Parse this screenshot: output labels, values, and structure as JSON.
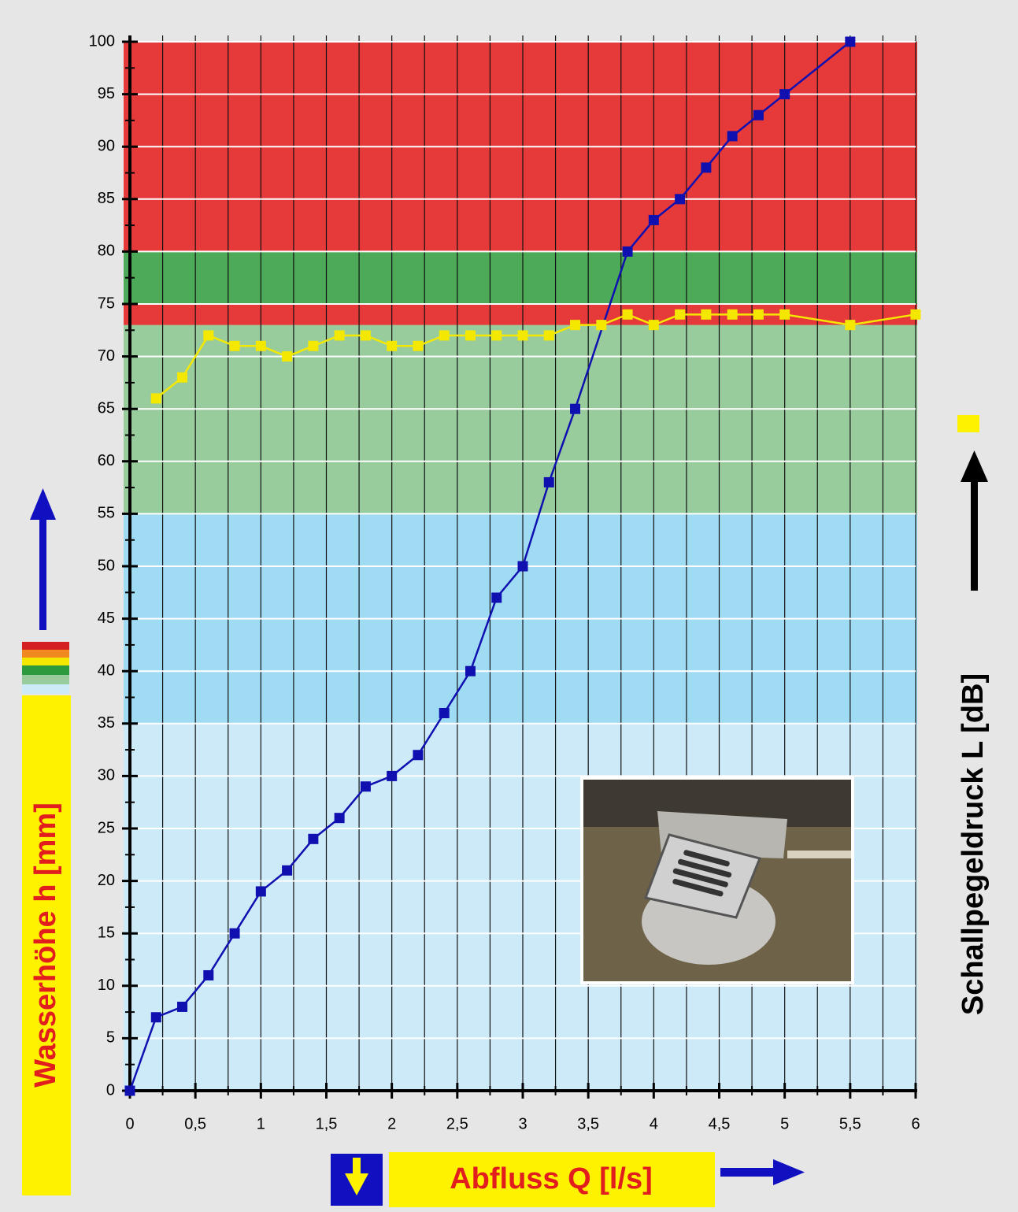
{
  "chart_data": {
    "type": "line",
    "ylabel": "Wasserhöhe h [mm]",
    "xlabel": "Abfluss Q [l/s]",
    "y2label": "Schallpegeldruck L [dB]",
    "xlim": [
      0,
      6
    ],
    "ylim": [
      0,
      100
    ],
    "xticks": [
      0,
      {
        "value": 0.5,
        "label": "0,5"
      },
      1,
      {
        "value": 1.5,
        "label": "1,5"
      },
      2,
      {
        "value": 2.5,
        "label": "2,5"
      },
      3,
      {
        "value": 3.5,
        "label": "3,5"
      },
      4,
      {
        "value": 4.5,
        "label": "4,5"
      },
      5,
      {
        "value": 5.5,
        "label": "5,5"
      },
      6
    ],
    "yticks": [
      0,
      5,
      10,
      15,
      20,
      25,
      30,
      35,
      40,
      45,
      50,
      55,
      60,
      65,
      70,
      75,
      80,
      85,
      90,
      95,
      100
    ],
    "grid": true,
    "xgrid_step": 0.25,
    "yminor_step": 2.5,
    "bands": [
      {
        "range": [
          0,
          35
        ],
        "color": "#cdeaf8"
      },
      {
        "range": [
          35,
          55
        ],
        "color": "#9fdcf4"
      },
      {
        "range": [
          55,
          75
        ],
        "color": "#98cc9c"
      },
      {
        "range": [
          73,
          100
        ],
        "color": "#e63a3a"
      },
      {
        "range": [
          75,
          80
        ],
        "color": "#4caa58"
      }
    ],
    "series": [
      {
        "color": "#1010b0",
        "x": [
          0,
          0.2,
          0.4,
          0.6,
          0.8,
          1,
          1.2,
          1.4,
          1.6,
          1.8,
          2,
          2.2,
          2.4,
          2.6,
          2.8,
          3,
          3.2,
          3.4,
          3.8,
          4,
          4.2,
          4.4,
          4.6,
          4.8,
          5,
          5.5
        ],
        "values": [
          0,
          7,
          8,
          11,
          15,
          19,
          21,
          24,
          26,
          29,
          30,
          32,
          36,
          40,
          47,
          50,
          58,
          65,
          80,
          83,
          85,
          88,
          91,
          93,
          95,
          100
        ]
      },
      {
        "color": "#f5e800",
        "x": [
          0.2,
          0.4,
          0.6,
          0.8,
          1,
          1.2,
          1.4,
          1.6,
          1.8,
          2,
          2.2,
          2.4,
          2.6,
          2.8,
          3,
          3.2,
          3.4,
          3.6,
          3.8,
          4,
          4.2,
          4.4,
          4.6,
          4.8,
          5,
          5.5,
          6
        ],
        "values": [
          66,
          68,
          72,
          71,
          71,
          70,
          71,
          72,
          72,
          71,
          71,
          72,
          72,
          72,
          72,
          72,
          73,
          73,
          74,
          73,
          74,
          74,
          74,
          74,
          74,
          73,
          74
        ]
      }
    ]
  }
}
